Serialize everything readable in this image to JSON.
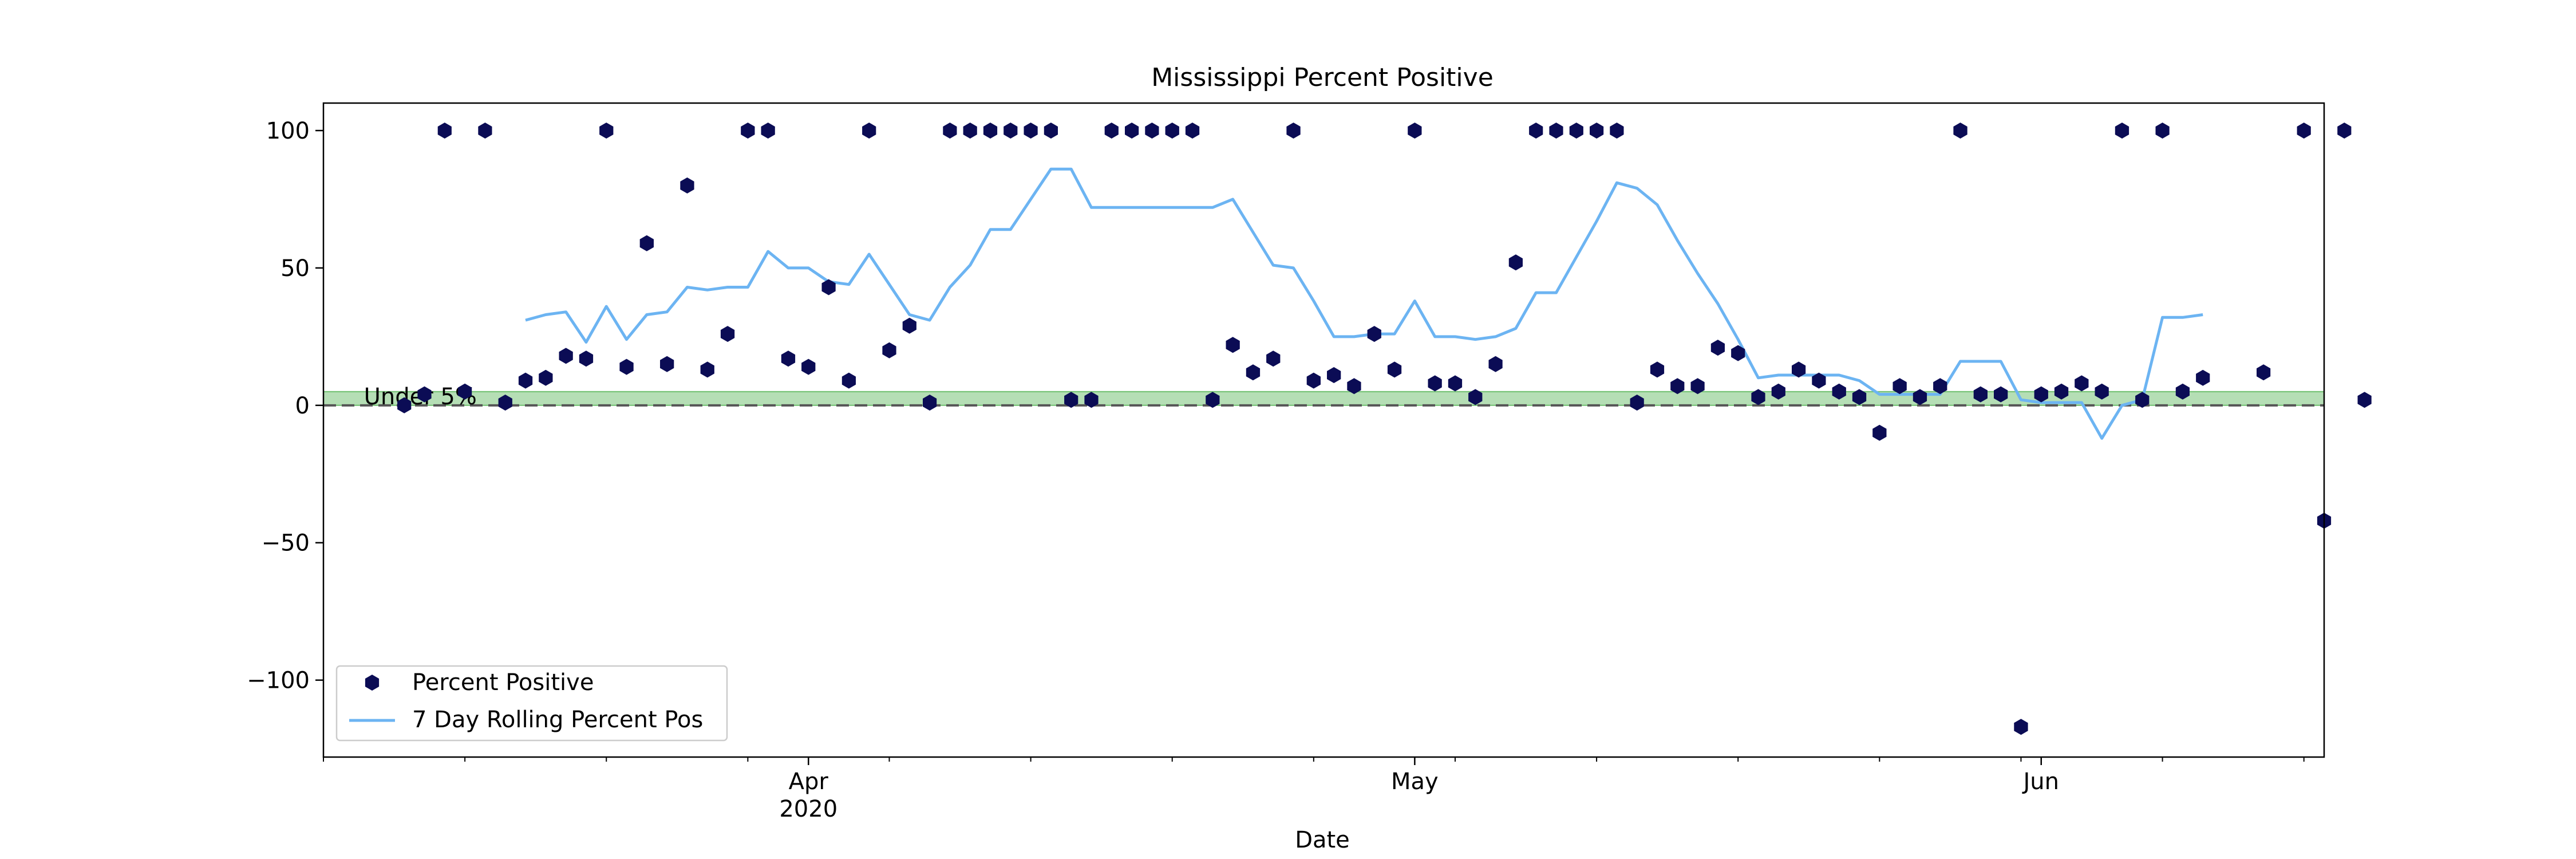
{
  "chart_data": {
    "type": "scatter",
    "title": "Mississippi Percent Positive",
    "xlabel": "Date",
    "ylabel": "",
    "x_range": [
      "2020-03-08",
      "2020-06-15"
    ],
    "ylim": [
      -128,
      110
    ],
    "grid": false,
    "legend_position": "lower-left",
    "x_ticks": [
      {
        "date": "2020-04-01",
        "label": "Apr",
        "sublabel": "2020"
      },
      {
        "date": "2020-05-01",
        "label": "May",
        "sublabel": ""
      },
      {
        "date": "2020-06-01",
        "label": "Jun",
        "sublabel": ""
      }
    ],
    "y_ticks": [
      100,
      50,
      0,
      -50,
      -100
    ],
    "y_tick_labels": [
      "100",
      "50",
      "0",
      "−50",
      "−100"
    ],
    "band": {
      "label": "Under 5%",
      "y_from": 0,
      "y_to": 5,
      "color": "#2ca02c"
    },
    "reference_line": {
      "y": 0,
      "style": "dashed",
      "color": "#555555"
    },
    "series": [
      {
        "name": "Percent Positive",
        "kind": "scatter",
        "marker": "hexagon",
        "color": "#0b0c55",
        "points": [
          [
            "2020-03-12",
            0
          ],
          [
            "2020-03-13",
            4
          ],
          [
            "2020-03-14",
            100
          ],
          [
            "2020-03-15",
            5
          ],
          [
            "2020-03-16",
            100
          ],
          [
            "2020-03-17",
            1
          ],
          [
            "2020-03-18",
            9
          ],
          [
            "2020-03-19",
            10
          ],
          [
            "2020-03-20",
            18
          ],
          [
            "2020-03-21",
            17
          ],
          [
            "2020-03-22",
            100
          ],
          [
            "2020-03-23",
            14
          ],
          [
            "2020-03-24",
            59
          ],
          [
            "2020-03-25",
            15
          ],
          [
            "2020-03-26",
            80
          ],
          [
            "2020-03-27",
            13
          ],
          [
            "2020-03-28",
            26
          ],
          [
            "2020-03-29",
            100
          ],
          [
            "2020-03-30",
            100
          ],
          [
            "2020-03-31",
            17
          ],
          [
            "2020-04-01",
            14
          ],
          [
            "2020-04-02",
            43
          ],
          [
            "2020-04-03",
            9
          ],
          [
            "2020-04-04",
            100
          ],
          [
            "2020-04-05",
            20
          ],
          [
            "2020-04-06",
            29
          ],
          [
            "2020-04-07",
            1
          ],
          [
            "2020-04-08",
            100
          ],
          [
            "2020-04-09",
            100
          ],
          [
            "2020-04-10",
            100
          ],
          [
            "2020-04-11",
            100
          ],
          [
            "2020-04-12",
            100
          ],
          [
            "2020-04-13",
            100
          ],
          [
            "2020-04-14",
            2
          ],
          [
            "2020-04-15",
            2
          ],
          [
            "2020-04-16",
            100
          ],
          [
            "2020-04-17",
            100
          ],
          [
            "2020-04-18",
            100
          ],
          [
            "2020-04-19",
            100
          ],
          [
            "2020-04-20",
            100
          ],
          [
            "2020-04-21",
            2
          ],
          [
            "2020-04-22",
            22
          ],
          [
            "2020-04-23",
            12
          ],
          [
            "2020-04-24",
            17
          ],
          [
            "2020-04-25",
            100
          ],
          [
            "2020-04-26",
            9
          ],
          [
            "2020-04-27",
            11
          ],
          [
            "2020-04-28",
            7
          ],
          [
            "2020-04-29",
            26
          ],
          [
            "2020-04-30",
            13
          ],
          [
            "2020-05-01",
            100
          ],
          [
            "2020-05-02",
            8
          ],
          [
            "2020-05-03",
            8
          ],
          [
            "2020-05-04",
            3
          ],
          [
            "2020-05-05",
            15
          ],
          [
            "2020-05-06",
            52
          ],
          [
            "2020-05-07",
            100
          ],
          [
            "2020-05-08",
            100
          ],
          [
            "2020-05-09",
            100
          ],
          [
            "2020-05-10",
            100
          ],
          [
            "2020-05-11",
            100
          ],
          [
            "2020-05-12",
            1
          ],
          [
            "2020-05-13",
            13
          ],
          [
            "2020-05-14",
            7
          ],
          [
            "2020-05-15",
            7
          ],
          [
            "2020-05-16",
            21
          ],
          [
            "2020-05-17",
            19
          ],
          [
            "2020-05-18",
            3
          ],
          [
            "2020-05-19",
            5
          ],
          [
            "2020-05-20",
            13
          ],
          [
            "2020-05-21",
            9
          ],
          [
            "2020-05-22",
            5
          ],
          [
            "2020-05-23",
            3
          ],
          [
            "2020-05-24",
            -10
          ],
          [
            "2020-05-25",
            7
          ],
          [
            "2020-05-26",
            3
          ],
          [
            "2020-05-27",
            7
          ],
          [
            "2020-05-28",
            100
          ],
          [
            "2020-05-29",
            4
          ],
          [
            "2020-05-30",
            4
          ],
          [
            "2020-05-31",
            -117
          ],
          [
            "2020-06-01",
            4
          ],
          [
            "2020-06-02",
            5
          ],
          [
            "2020-06-03",
            8
          ],
          [
            "2020-06-04",
            5
          ],
          [
            "2020-06-05",
            100
          ],
          [
            "2020-06-06",
            2
          ],
          [
            "2020-06-07",
            100
          ],
          [
            "2020-06-08",
            5
          ],
          [
            "2020-06-09",
            10
          ],
          [
            "2020-06-12",
            12
          ],
          [
            "2020-06-14",
            100
          ],
          [
            "2020-06-15",
            -42
          ],
          [
            "2020-06-16",
            100
          ],
          [
            "2020-06-17",
            2
          ]
        ]
      },
      {
        "name": "7 Day Rolling Percent Pos",
        "kind": "line",
        "color": "#6cb4f2",
        "points": [
          [
            "2020-03-18",
            31
          ],
          [
            "2020-03-19",
            33
          ],
          [
            "2020-03-20",
            34
          ],
          [
            "2020-03-21",
            23
          ],
          [
            "2020-03-22",
            36
          ],
          [
            "2020-03-23",
            24
          ],
          [
            "2020-03-24",
            33
          ],
          [
            "2020-03-25",
            34
          ],
          [
            "2020-03-26",
            43
          ],
          [
            "2020-03-27",
            42
          ],
          [
            "2020-03-28",
            43
          ],
          [
            "2020-03-29",
            43
          ],
          [
            "2020-03-30",
            56
          ],
          [
            "2020-03-31",
            50
          ],
          [
            "2020-04-01",
            50
          ],
          [
            "2020-04-02",
            45
          ],
          [
            "2020-04-03",
            44
          ],
          [
            "2020-04-04",
            55
          ],
          [
            "2020-04-05",
            44
          ],
          [
            "2020-04-06",
            33
          ],
          [
            "2020-04-07",
            31
          ],
          [
            "2020-04-08",
            43
          ],
          [
            "2020-04-09",
            51
          ],
          [
            "2020-04-10",
            64
          ],
          [
            "2020-04-11",
            64
          ],
          [
            "2020-04-12",
            75
          ],
          [
            "2020-04-13",
            86
          ],
          [
            "2020-04-14",
            86
          ],
          [
            "2020-04-15",
            72
          ],
          [
            "2020-04-16",
            72
          ],
          [
            "2020-04-17",
            72
          ],
          [
            "2020-04-18",
            72
          ],
          [
            "2020-04-19",
            72
          ],
          [
            "2020-04-20",
            72
          ],
          [
            "2020-04-21",
            72
          ],
          [
            "2020-04-22",
            75
          ],
          [
            "2020-04-23",
            63
          ],
          [
            "2020-04-24",
            51
          ],
          [
            "2020-04-25",
            50
          ],
          [
            "2020-04-26",
            38
          ],
          [
            "2020-04-27",
            25
          ],
          [
            "2020-04-28",
            25
          ],
          [
            "2020-04-29",
            26
          ],
          [
            "2020-04-30",
            26
          ],
          [
            "2020-05-01",
            38
          ],
          [
            "2020-05-02",
            25
          ],
          [
            "2020-05-03",
            25
          ],
          [
            "2020-05-04",
            24
          ],
          [
            "2020-05-05",
            25
          ],
          [
            "2020-05-06",
            28
          ],
          [
            "2020-05-07",
            41
          ],
          [
            "2020-05-08",
            41
          ],
          [
            "2020-05-09",
            54
          ],
          [
            "2020-05-10",
            67
          ],
          [
            "2020-05-11",
            81
          ],
          [
            "2020-05-12",
            79
          ],
          [
            "2020-05-13",
            73
          ],
          [
            "2020-05-14",
            60
          ],
          [
            "2020-05-15",
            48
          ],
          [
            "2020-05-16",
            37
          ],
          [
            "2020-05-17",
            24
          ],
          [
            "2020-05-18",
            10
          ],
          [
            "2020-05-19",
            11
          ],
          [
            "2020-05-20",
            11
          ],
          [
            "2020-05-21",
            11
          ],
          [
            "2020-05-22",
            11
          ],
          [
            "2020-05-23",
            9
          ],
          [
            "2020-05-24",
            4
          ],
          [
            "2020-05-25",
            4
          ],
          [
            "2020-05-26",
            4
          ],
          [
            "2020-05-27",
            4
          ],
          [
            "2020-05-28",
            16
          ],
          [
            "2020-05-29",
            16
          ],
          [
            "2020-05-30",
            16
          ],
          [
            "2020-05-31",
            2
          ],
          [
            "2020-06-01",
            1
          ],
          [
            "2020-06-02",
            1
          ],
          [
            "2020-06-03",
            1
          ],
          [
            "2020-06-04",
            -12
          ],
          [
            "2020-06-05",
            0
          ],
          [
            "2020-06-06",
            2
          ],
          [
            "2020-06-07",
            32
          ],
          [
            "2020-06-08",
            32
          ],
          [
            "2020-06-09",
            33
          ]
        ]
      }
    ]
  }
}
